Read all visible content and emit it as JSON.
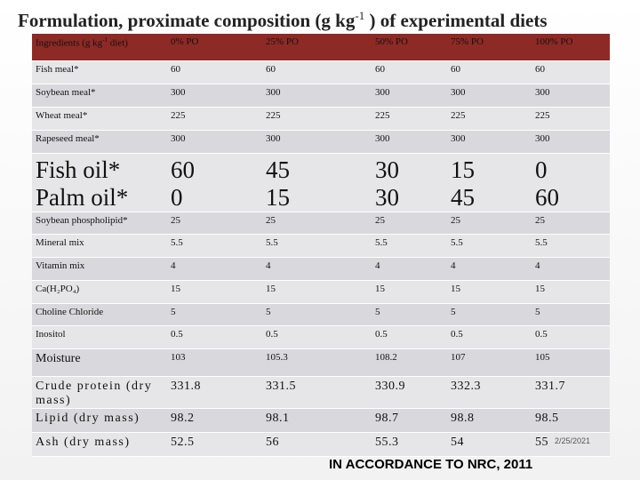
{
  "title": {
    "before": "Formulation, proximate composition (g kg",
    "sup": "-1",
    "after": " ) of experimental diets"
  },
  "table": {
    "header": {
      "first": {
        "before": "Ingredients (g kg",
        "sup": "-1",
        "after": " diet)"
      },
      "columns": [
        "0% PO",
        "25% PO",
        "50% PO",
        "75% PO",
        "100% PO"
      ]
    },
    "rows": [
      [
        "Fish meal*",
        "60",
        "60",
        "60",
        "60",
        "60"
      ],
      [
        "Soybean meal*",
        "300",
        "300",
        "300",
        "300",
        "300"
      ],
      [
        "Wheat meal*",
        "225",
        "225",
        "225",
        "225",
        "225"
      ],
      [
        "Rapeseed meal*",
        "300",
        "300",
        "300",
        "300",
        "300"
      ],
      [
        "Fish oil*",
        "60",
        "45",
        "30",
        "15",
        "0"
      ],
      [
        "Palm oil*",
        "0",
        "15",
        "30",
        "45",
        "60"
      ],
      [
        "Soybean phospholipid*",
        "25",
        "25",
        "25",
        "25",
        "25"
      ],
      [
        "Mineral mix",
        "5.5",
        "5.5",
        "5.5",
        "5.5",
        "5.5"
      ],
      [
        "Vitamin mix",
        "4",
        "4",
        "4",
        "4",
        "4"
      ],
      [
        "Ca(H₂PO₄)",
        "15",
        "15",
        "15",
        "15",
        "15"
      ],
      [
        "Choline Chloride",
        "5",
        "5",
        "5",
        "5",
        "5"
      ],
      [
        "Inositol",
        "0.5",
        "0.5",
        "0.5",
        "0.5",
        "0.5"
      ],
      [
        "Moisture",
        "103",
        "105.3",
        "108.2",
        "107",
        "105"
      ],
      [
        "Crude protein (dry mass)",
        "331.8",
        "331.5",
        "330.9",
        "332.3",
        "331.7"
      ],
      [
        "Lipid (dry mass)",
        "98.2",
        "98.1",
        "98.7",
        "98.8",
        "98.5"
      ],
      [
        "Ash (dry mass)",
        "52.5",
        "56",
        "55.3",
        "54",
        "55"
      ]
    ]
  },
  "footer": {
    "date": "2/25/2021",
    "note": "IN ACCORDANCE TO NRC, 2011"
  }
}
